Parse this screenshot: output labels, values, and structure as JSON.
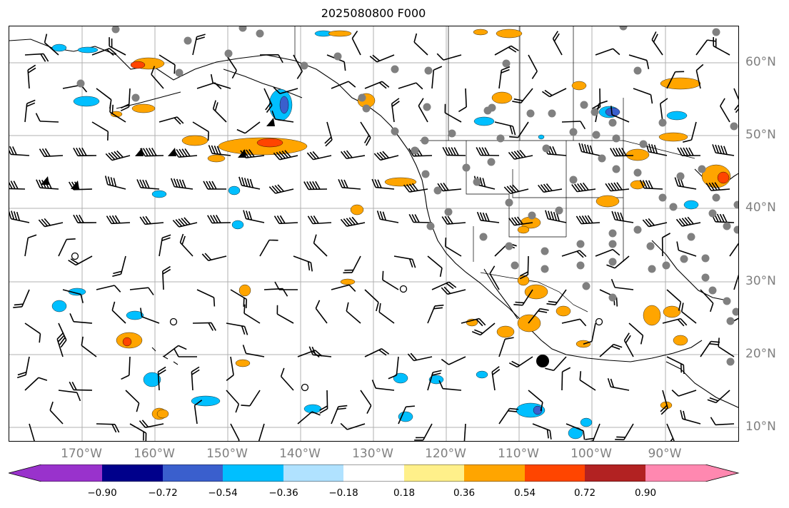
{
  "title": "2025080800 F000",
  "lon_labels": [
    "170°W",
    "160°W",
    "150°W",
    "140°W",
    "130°W",
    "120°W",
    "110°W",
    "100°W",
    "90°W"
  ],
  "lat_labels": [
    "60°N",
    "50°N",
    "40°N",
    "30°N",
    "20°N",
    "10°N"
  ],
  "colorbar": {
    "ticks": [
      "−0.90",
      "−0.72",
      "−0.54",
      "−0.36",
      "−0.18",
      "0.18",
      "0.36",
      "0.54",
      "0.72",
      "0.90"
    ],
    "colors": [
      "#9932cc",
      "#00008b",
      "#3a5fcd",
      "#00bfff",
      "#b0e2ff",
      "#ffffff",
      "#fff08a",
      "#ffa500",
      "#ff4500",
      "#b22222",
      "#ff88b0"
    ]
  },
  "colors": {
    "grid": "#b0b0b0",
    "coast": "#000000",
    "label": "#808080"
  }
}
